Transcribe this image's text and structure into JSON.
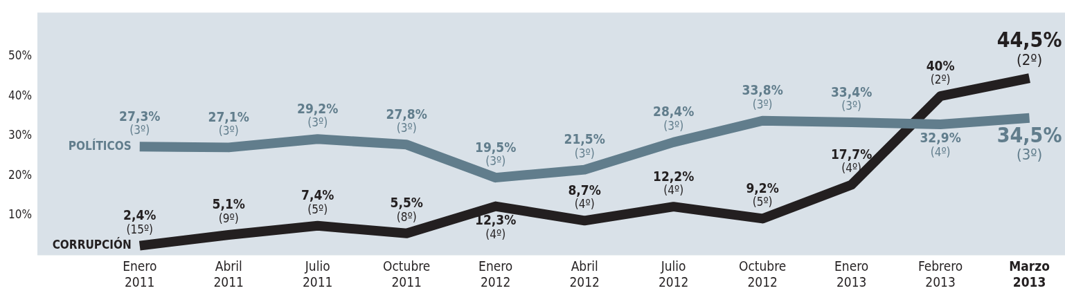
{
  "chart_data": {
    "type": "line",
    "categories": [
      "Enero 2011",
      "Abril 2011",
      "Julio 2011",
      "Octubre 2011",
      "Enero 2012",
      "Abril 2012",
      "Julio 2012",
      "Octubre 2012",
      "Enero 2013",
      "Febrero 2013",
      "Marzo 2013"
    ],
    "series": [
      {
        "name": "POLÍTICOS",
        "color": "#617d8c",
        "values": [
          27.3,
          27.1,
          29.2,
          27.8,
          19.5,
          21.5,
          28.4,
          33.8,
          33.4,
          32.9,
          34.5
        ],
        "value_labels": [
          "27,3%\n(3º)",
          "27,1%\n(3º)",
          "29,2%\n(3º)",
          "27,8%\n(3º)",
          "19,5%\n(3º)",
          "21,5%\n(3º)",
          "28,4%\n(3º)",
          "33,8%\n(3º)",
          "33,4%\n(3º)",
          "32,9%\n(4º)",
          "34,5%\n(3º)"
        ]
      },
      {
        "name": "CORRUPCIÓN",
        "color": "#231f20",
        "values": [
          2.4,
          5.1,
          7.4,
          5.5,
          12.3,
          8.7,
          12.2,
          9.2,
          17.7,
          40,
          44.5
        ],
        "value_labels": [
          "2,4%\n(15º)",
          "5,1%\n(9º)",
          "7,4%\n(5º)",
          "5,5%\n(8º)",
          "12,3%\n(4º)",
          "8,7%\n(4º)",
          "12,2%\n(4º)",
          "9,2%\n(5º)",
          "17,7%\n(4º)",
          "40%\n(2º)",
          "44,5%\n(2º)"
        ]
      }
    ],
    "ylim": [
      0,
      61
    ],
    "yticks": [
      {
        "value": 10,
        "label": "10%"
      },
      {
        "value": 20,
        "label": "20%"
      },
      {
        "value": 30,
        "label": "30%"
      },
      {
        "value": 40,
        "label": "40%"
      },
      {
        "value": 50,
        "label": "50%"
      }
    ],
    "grid": false,
    "legend": false,
    "marker": "none",
    "line_style": "solid"
  }
}
